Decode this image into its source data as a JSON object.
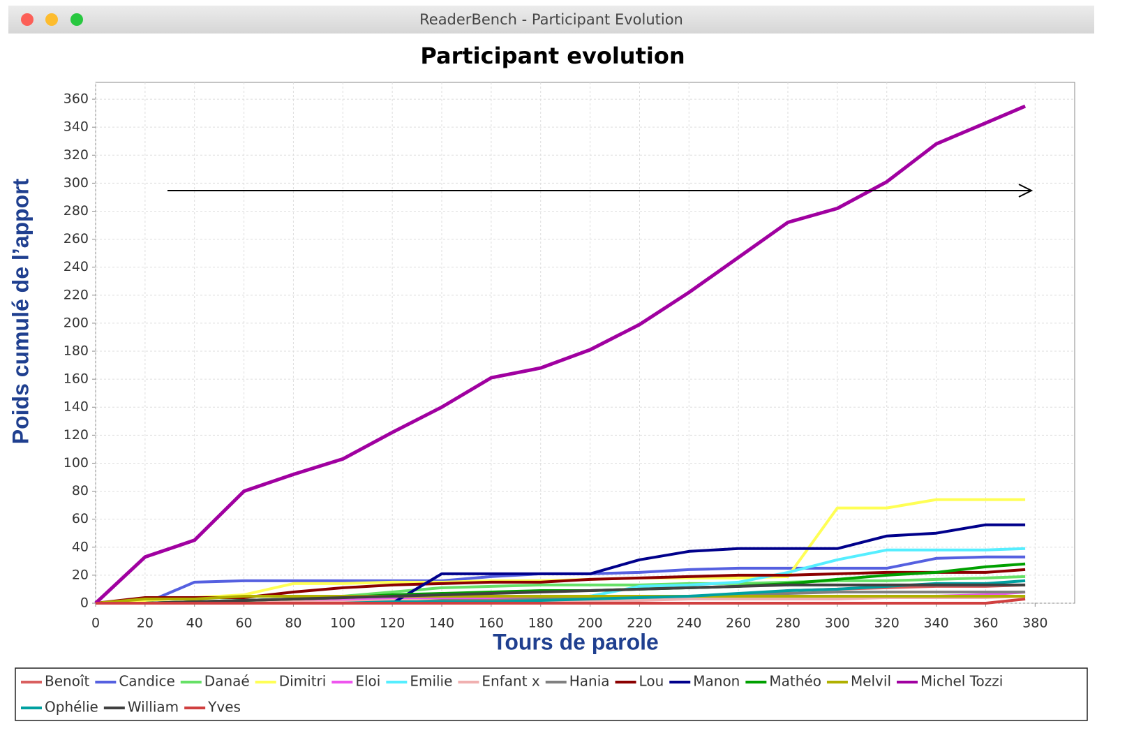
{
  "window": {
    "title": "ReaderBench - Participant Evolution"
  },
  "chart_data": {
    "type": "line",
    "title": "Participant evolution",
    "x_label": "Tours de parole",
    "y_label": "Poids cumulé de l’apport",
    "x": [
      0,
      20,
      40,
      60,
      80,
      100,
      120,
      140,
      160,
      180,
      200,
      220,
      240,
      260,
      280,
      300,
      320,
      340,
      360,
      376
    ],
    "series": [
      {
        "name": "Benoît",
        "color": "#d95f5f",
        "values": [
          0,
          0,
          1,
          1,
          2,
          2,
          3,
          3,
          3,
          3,
          3,
          3,
          4,
          5,
          9,
          10,
          11,
          12,
          12,
          13
        ]
      },
      {
        "name": "Candice",
        "color": "#5560e0",
        "values": [
          0,
          0,
          15,
          16,
          16,
          16,
          16,
          16,
          19,
          21,
          21,
          22,
          24,
          25,
          25,
          25,
          25,
          32,
          33,
          33
        ]
      },
      {
        "name": "Danaé",
        "color": "#66e066",
        "values": [
          0,
          0,
          1,
          2,
          3,
          5,
          8,
          11,
          12,
          13,
          13,
          13,
          14,
          14,
          15,
          16,
          16,
          17,
          18,
          19
        ]
      },
      {
        "name": "Dimitri",
        "color": "#ffff55",
        "values": [
          0,
          2,
          4,
          6,
          14,
          14,
          15,
          15,
          16,
          16,
          17,
          18,
          18,
          18,
          19,
          68,
          68,
          74,
          74,
          74
        ]
      },
      {
        "name": "Eloi",
        "color": "#ee55ee",
        "values": [
          0,
          0,
          0,
          0,
          1,
          2,
          3,
          3,
          4,
          4,
          4,
          4,
          4,
          4,
          5,
          5,
          5,
          5,
          6,
          8
        ]
      },
      {
        "name": "Emilie",
        "color": "#55eeff",
        "values": [
          0,
          0,
          0,
          0,
          0,
          0,
          0,
          0,
          0,
          0,
          5,
          12,
          13,
          15,
          22,
          31,
          38,
          38,
          38,
          39
        ]
      },
      {
        "name": "Enfant x",
        "color": "#f0b0b0",
        "values": [
          0,
          0,
          0,
          1,
          1,
          1,
          2,
          2,
          2,
          2,
          2,
          2,
          3,
          3,
          3,
          3,
          4,
          4,
          4,
          5
        ]
      },
      {
        "name": "Hania",
        "color": "#808080",
        "values": [
          0,
          0,
          0,
          0,
          0,
          0,
          0,
          2,
          2,
          3,
          4,
          5,
          5,
          6,
          7,
          8,
          8,
          8,
          8,
          8
        ]
      },
      {
        "name": "Lou",
        "color": "#8b0000",
        "values": [
          0,
          4,
          4,
          4,
          8,
          11,
          13,
          14,
          15,
          15,
          17,
          18,
          19,
          20,
          20,
          21,
          22,
          22,
          22,
          24
        ]
      },
      {
        "name": "Manon",
        "color": "#00008b",
        "values": [
          0,
          0,
          0,
          0,
          0,
          0,
          0,
          21,
          21,
          21,
          21,
          31,
          37,
          39,
          39,
          39,
          48,
          50,
          56,
          56
        ]
      },
      {
        "name": "Mathéo",
        "color": "#00a000",
        "values": [
          0,
          0,
          1,
          2,
          3,
          4,
          6,
          7,
          8,
          9,
          9,
          10,
          11,
          12,
          14,
          17,
          20,
          22,
          26,
          28
        ]
      },
      {
        "name": "Melvil",
        "color": "#b0b000",
        "values": [
          0,
          3,
          3,
          5,
          5,
          5,
          5,
          5,
          5,
          5,
          5,
          5,
          5,
          5,
          5,
          5,
          5,
          5,
          5,
          5
        ]
      },
      {
        "name": "Michel Tozzi",
        "color": "#a000a0",
        "values": [
          0,
          33,
          45,
          80,
          92,
          103,
          122,
          140,
          161,
          168,
          181,
          199,
          222,
          247,
          272,
          282,
          301,
          328,
          343,
          355
        ]
      },
      {
        "name": "Ophélie",
        "color": "#00a0a0",
        "values": [
          0,
          0,
          0,
          0,
          0,
          0,
          1,
          1,
          1,
          2,
          3,
          4,
          5,
          7,
          9,
          10,
          12,
          14,
          14,
          16
        ]
      },
      {
        "name": "William",
        "color": "#404040",
        "values": [
          0,
          0,
          1,
          2,
          3,
          4,
          5,
          6,
          7,
          8,
          9,
          10,
          11,
          12,
          13,
          13,
          13,
          13,
          13,
          13
        ]
      },
      {
        "name": "Yves",
        "color": "#d04040",
        "values": [
          0,
          0,
          0,
          0,
          0,
          0,
          0,
          0,
          0,
          0,
          0,
          0,
          0,
          0,
          0,
          0,
          0,
          0,
          0,
          3
        ]
      }
    ],
    "xlim": [
      0,
      396
    ],
    "ylim": [
      0,
      372
    ],
    "xticks": [
      0,
      20,
      40,
      60,
      80,
      100,
      120,
      140,
      160,
      180,
      200,
      220,
      240,
      260,
      280,
      300,
      320,
      340,
      360,
      380
    ],
    "yticks": [
      0,
      20,
      40,
      60,
      80,
      100,
      120,
      140,
      160,
      180,
      200,
      220,
      240,
      260,
      280,
      300,
      320,
      340,
      360
    ],
    "grid": true
  }
}
